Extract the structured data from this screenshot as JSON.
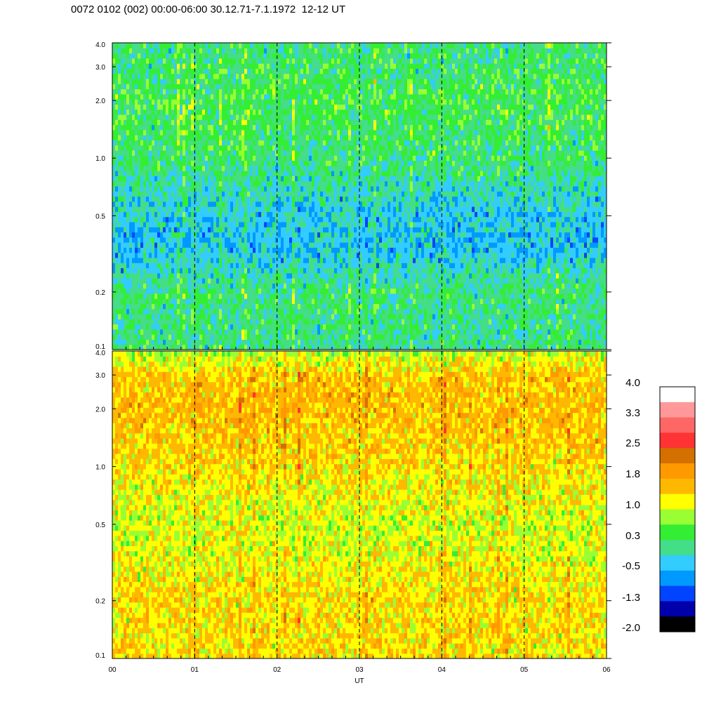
{
  "title": "0072 0102 (002) 00:00-06:00 30.12.71-7.1.1972  12-12 UT",
  "chart_data": [
    {
      "type": "heatmap",
      "panel": "upper",
      "x_range": [
        0,
        6
      ],
      "x_tick_labels": [
        "00",
        "01",
        "02",
        "03",
        "04",
        "05",
        "06"
      ],
      "y_scale": "log",
      "y_range": [
        0.1,
        4.0
      ],
      "y_ticks": [
        0.1,
        0.2,
        0.5,
        1.0,
        2.0,
        3.0,
        4.0
      ],
      "y_tick_labels": [
        "0.1",
        "0.2",
        "0.5",
        "1.0",
        "2.0",
        "3.0",
        "4.0"
      ],
      "hour_marker_lines": [
        1,
        2,
        3,
        4,
        5
      ],
      "level_profile": [
        {
          "y": 0.1,
          "level": 0.1
        },
        {
          "y": 0.2,
          "level": 0.15
        },
        {
          "y": 0.35,
          "level": -0.4
        },
        {
          "y": 0.5,
          "level": -0.3
        },
        {
          "y": 0.8,
          "level": 0.0
        },
        {
          "y": 1.0,
          "level": 0.2
        },
        {
          "y": 2.0,
          "level": 0.35
        },
        {
          "y": 4.0,
          "level": 0.15
        }
      ]
    },
    {
      "type": "heatmap",
      "panel": "lower",
      "x_range": [
        0,
        6
      ],
      "x_tick_labels": [
        "00",
        "01",
        "02",
        "03",
        "04",
        "05",
        "06"
      ],
      "xlabel": "UT",
      "y_scale": "log",
      "y_range": [
        0.1,
        4.0
      ],
      "y_ticks": [
        0.1,
        0.2,
        0.5,
        1.0,
        2.0,
        3.0,
        4.0
      ],
      "y_tick_labels": [
        "0.1",
        "0.2",
        "0.5",
        "1.0",
        "2.0",
        "3.0",
        "4.0"
      ],
      "hour_marker_lines": [
        1,
        2,
        3,
        4,
        5
      ],
      "level_profile": [
        {
          "y": 0.1,
          "level": 1.35
        },
        {
          "y": 0.2,
          "level": 1.35
        },
        {
          "y": 0.5,
          "level": 1.0
        },
        {
          "y": 1.0,
          "level": 1.35
        },
        {
          "y": 2.0,
          "level": 1.6
        },
        {
          "y": 3.0,
          "level": 1.5
        },
        {
          "y": 4.0,
          "level": 0.9
        }
      ]
    }
  ],
  "colorbar": {
    "labels": [
      "4.0",
      "3.3",
      "2.5",
      "1.8",
      "1.0",
      "0.3",
      "-0.5",
      "-1.3",
      "-2.0"
    ],
    "colors": [
      "#ffffff",
      "#ff9999",
      "#ff6666",
      "#ff3333",
      "#d47000",
      "#ff9900",
      "#ffb800",
      "#ffff00",
      "#99ff33",
      "#33ee33",
      "#44dd88",
      "#33ccff",
      "#0099ff",
      "#0044ff",
      "#0000aa",
      "#000000"
    ],
    "min": -2.0,
    "max": 4.0
  }
}
